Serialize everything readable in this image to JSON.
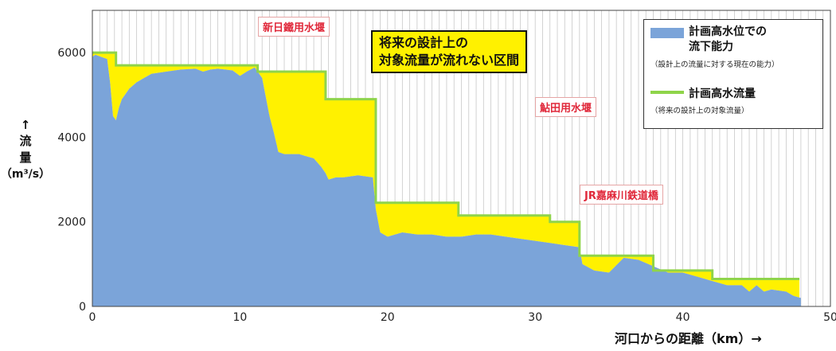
{
  "chart_data": {
    "type": "area",
    "xlabel": "河口からの距離（km）→",
    "ylabel": {
      "arrow": "↑",
      "line1": "流",
      "line2": "量",
      "unit": "（m³/s）"
    },
    "xlim": [
      0,
      50
    ],
    "ylim": [
      0,
      7000
    ],
    "x_ticks": [
      0,
      10,
      20,
      30,
      40,
      50
    ],
    "y_ticks": [
      0,
      2000,
      4000,
      6000
    ],
    "grid": "vertical",
    "legend_position": "top-right",
    "series": [
      {
        "name": "計画高水位での流下能力",
        "kind": "area",
        "color": "#7ba4d9",
        "x": [
          0,
          0.2,
          0.6,
          1.0,
          1.2,
          1.4,
          1.6,
          1.8,
          2.0,
          2.5,
          3.0,
          3.5,
          4.0,
          5.0,
          6.0,
          7.0,
          7.5,
          8.0,
          8.5,
          9.0,
          9.5,
          10.0,
          10.5,
          11.0,
          11.5,
          12.0,
          12.3,
          12.6,
          13.0,
          14.0,
          15.0,
          15.5,
          15.8,
          16.0,
          16.5,
          17.0,
          18.0,
          19.0,
          19.2,
          19.5,
          20.0,
          21.0,
          22.0,
          23.0,
          24.0,
          25.0,
          26.0,
          27.0,
          28.0,
          29.0,
          30.0,
          31.0,
          32.0,
          33.0,
          33.2,
          34.0,
          35.0,
          36.0,
          37.0,
          38.0,
          39.0,
          40.0,
          41.0,
          42.0,
          43.0,
          44.0,
          44.5,
          45.0,
          45.5,
          46.0,
          47.0,
          47.5,
          48.0
        ],
        "y": [
          5900,
          5950,
          5900,
          5850,
          5300,
          4500,
          4400,
          4700,
          4900,
          5150,
          5300,
          5400,
          5500,
          5550,
          5600,
          5620,
          5550,
          5600,
          5620,
          5600,
          5580,
          5450,
          5560,
          5650,
          5400,
          4500,
          4100,
          3650,
          3600,
          3600,
          3500,
          3300,
          3150,
          3000,
          3050,
          3050,
          3100,
          3050,
          2300,
          1750,
          1650,
          1750,
          1700,
          1700,
          1650,
          1650,
          1700,
          1700,
          1650,
          1600,
          1550,
          1500,
          1450,
          1400,
          1000,
          850,
          800,
          1150,
          1100,
          950,
          800,
          800,
          700,
          600,
          500,
          500,
          350,
          500,
          350,
          400,
          350,
          250,
          200
        ]
      },
      {
        "name": "計画高水流量",
        "kind": "step-line",
        "color": "#8fd44a",
        "x": [
          0,
          1.6,
          1.6,
          11.2,
          11.2,
          15.8,
          15.8,
          19.2,
          19.2,
          24.8,
          24.8,
          31.0,
          31.0,
          33.0,
          33.0,
          38.0,
          38.0,
          42.0,
          42.0,
          47.9
        ],
        "y": [
          6000,
          6000,
          5700,
          5700,
          5550,
          5550,
          4900,
          4900,
          2450,
          2450,
          2150,
          2150,
          2000,
          2000,
          1200,
          1200,
          850,
          850,
          650,
          650
        ]
      }
    ],
    "legend": [
      {
        "label": "計画高水位での\n流下能力",
        "sub": "（設計上の流量に対する現在の能力）",
        "color": "#7ba4d9"
      },
      {
        "label": "計画高水流量",
        "sub": "（将来の設計上の対象流量）",
        "color": "#8fd44a"
      }
    ],
    "annotations": [
      {
        "text": "新日鐵用水堰",
        "style": "red"
      },
      {
        "text": "鮎田用水堰",
        "style": "red"
      },
      {
        "text": "JR嘉麻川鉄道橋",
        "style": "red"
      },
      {
        "text": "将来の設計上の\n対象流量が流れない区間",
        "style": "yellow"
      }
    ],
    "shortfall_color": "#fff100"
  }
}
